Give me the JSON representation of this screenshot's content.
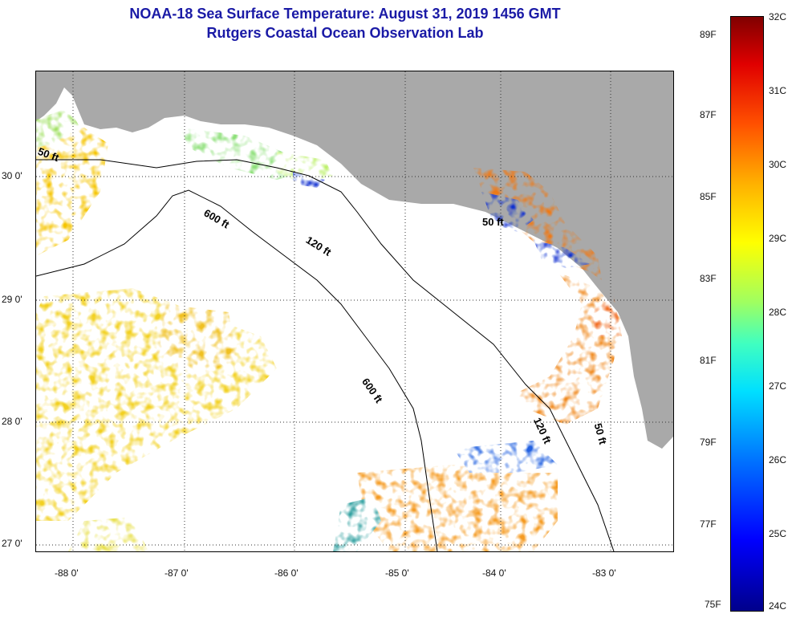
{
  "title": {
    "line1": "NOAA-18 Sea Surface Temperature:  August 31, 2019 1456 GMT",
    "line2": "Rutgers Coastal Ocean Observation Lab"
  },
  "map": {
    "lat_labels": [
      "30 0'",
      "29 0'",
      "28 0'",
      "27 0'"
    ],
    "lon_labels": [
      "-88 0'",
      "-87 0'",
      "-86 0'",
      "-85 0'",
      "-84 0'",
      "-83 0'"
    ],
    "depth_labels": [
      "50 ft",
      "600 ft",
      "120 ft",
      "50 ft",
      "600 ft",
      "120 ft",
      "50 ft"
    ],
    "colors": {
      "land": "#a9a9a9",
      "water_nodata": "#ffffff",
      "contour": "#000000"
    }
  },
  "colorbar": {
    "celsius": [
      "32C",
      "31C",
      "30C",
      "29C",
      "28C",
      "27C",
      "26C",
      "25C",
      "24C"
    ],
    "fahrenheit": [
      "89F",
      "87F",
      "85F",
      "83F",
      "81F",
      "79F",
      "77F",
      "75F"
    ],
    "range_c": [
      24,
      32
    ],
    "range_f": [
      75,
      89
    ]
  }
}
